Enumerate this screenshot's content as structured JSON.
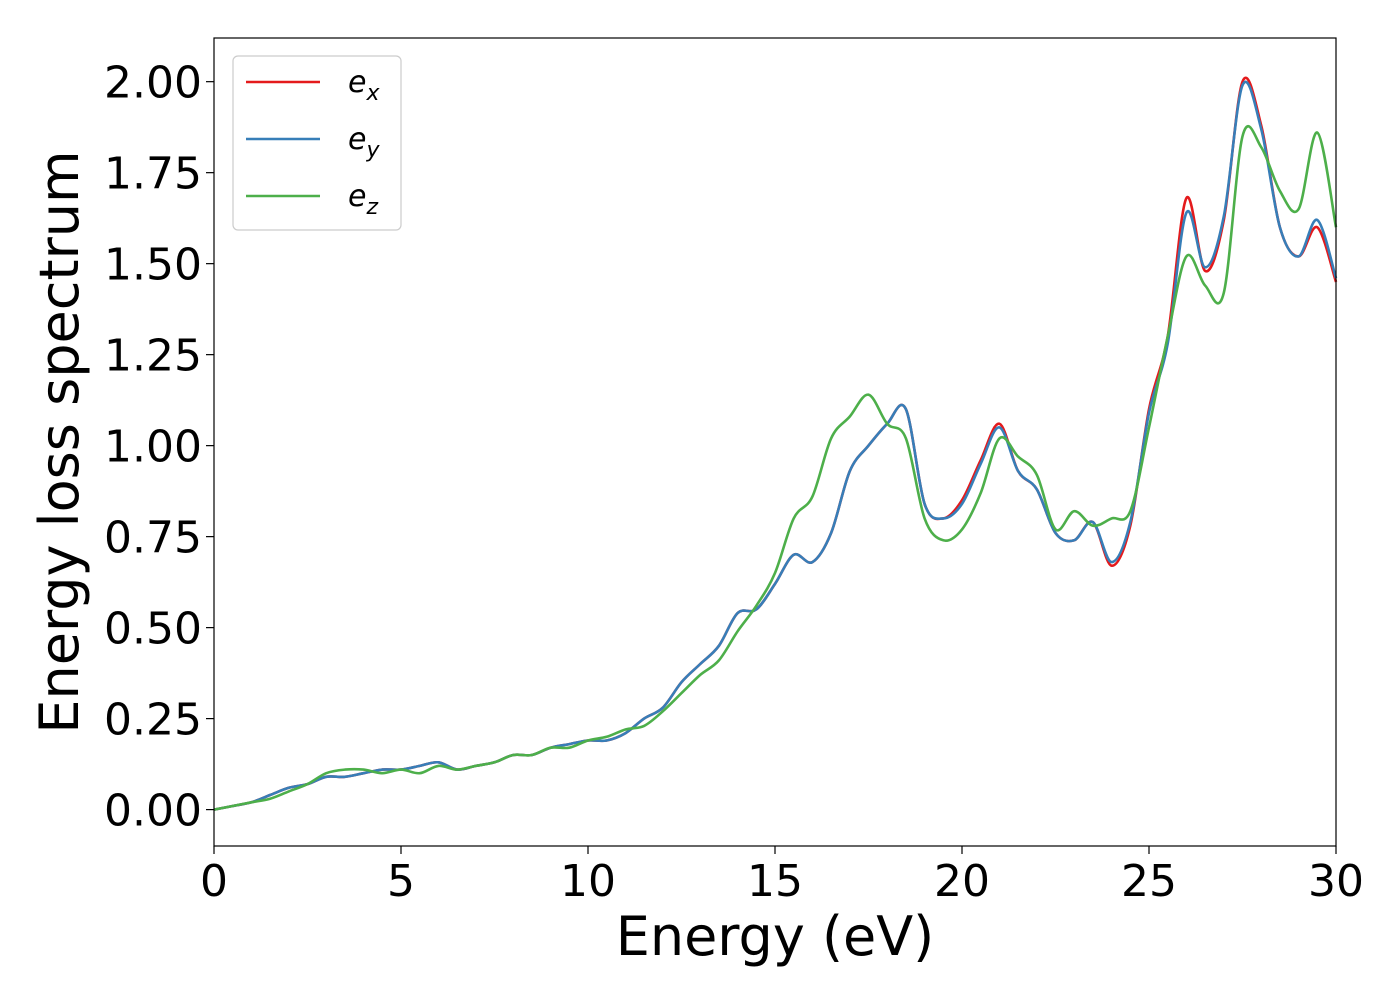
{
  "chart_data": {
    "type": "line",
    "title": "",
    "xlabel": "Energy (eV)",
    "ylabel": "Energy loss spectrum",
    "xlim": [
      0,
      30
    ],
    "ylim": [
      -0.1,
      2.12
    ],
    "grid": false,
    "legend_position": "top-left",
    "x_ticks": [
      "0",
      "5",
      "10",
      "15",
      "20",
      "25",
      "30"
    ],
    "y_ticks": [
      "0.00",
      "0.25",
      "0.50",
      "0.75",
      "1.00",
      "1.25",
      "1.50",
      "1.75",
      "2.00"
    ],
    "x": [
      0,
      0.5,
      1,
      1.5,
      2,
      2.5,
      3,
      3.5,
      4,
      4.5,
      5,
      5.5,
      6,
      6.5,
      7,
      7.5,
      8,
      8.5,
      9,
      9.5,
      10,
      10.5,
      11,
      11.5,
      12,
      12.5,
      13,
      13.5,
      14,
      14.5,
      15,
      15.5,
      16,
      16.5,
      17,
      17.5,
      18,
      18.5,
      19,
      19.5,
      20,
      20.5,
      21,
      21.5,
      22,
      22.5,
      23,
      23.5,
      24,
      24.5,
      25,
      25.5,
      26,
      26.5,
      27,
      27.5,
      28,
      28.5,
      29,
      29.5,
      30
    ],
    "series": [
      {
        "name": "e_x",
        "label_base": "e",
        "label_sub": "x",
        "color": "#e41a1c",
        "values": [
          0,
          0.01,
          0.02,
          0.04,
          0.06,
          0.07,
          0.09,
          0.09,
          0.1,
          0.11,
          0.11,
          0.12,
          0.13,
          0.11,
          0.12,
          0.13,
          0.15,
          0.15,
          0.17,
          0.18,
          0.19,
          0.19,
          0.21,
          0.25,
          0.28,
          0.35,
          0.4,
          0.45,
          0.54,
          0.55,
          0.62,
          0.7,
          0.68,
          0.76,
          0.93,
          1.0,
          1.06,
          1.1,
          0.84,
          0.8,
          0.85,
          0.96,
          1.06,
          0.93,
          0.88,
          0.76,
          0.74,
          0.79,
          0.67,
          0.78,
          1.1,
          1.3,
          1.68,
          1.48,
          1.62,
          2.0,
          1.88,
          1.6,
          1.52,
          1.6,
          1.45
        ]
      },
      {
        "name": "e_y",
        "label_base": "e",
        "label_sub": "y",
        "color": "#377eb8",
        "values": [
          0,
          0.01,
          0.02,
          0.04,
          0.06,
          0.07,
          0.09,
          0.09,
          0.1,
          0.11,
          0.11,
          0.12,
          0.13,
          0.11,
          0.12,
          0.13,
          0.15,
          0.15,
          0.17,
          0.18,
          0.19,
          0.19,
          0.21,
          0.25,
          0.28,
          0.35,
          0.4,
          0.45,
          0.54,
          0.55,
          0.62,
          0.7,
          0.68,
          0.76,
          0.93,
          1.0,
          1.06,
          1.1,
          0.84,
          0.8,
          0.84,
          0.95,
          1.05,
          0.93,
          0.88,
          0.76,
          0.74,
          0.79,
          0.68,
          0.79,
          1.09,
          1.28,
          1.64,
          1.49,
          1.63,
          1.99,
          1.87,
          1.6,
          1.52,
          1.62,
          1.46
        ]
      },
      {
        "name": "e_z",
        "label_base": "e",
        "label_sub": "z",
        "color": "#4daf4a",
        "values": [
          0,
          0.01,
          0.02,
          0.03,
          0.05,
          0.07,
          0.1,
          0.11,
          0.11,
          0.1,
          0.11,
          0.1,
          0.12,
          0.11,
          0.12,
          0.13,
          0.15,
          0.15,
          0.17,
          0.17,
          0.19,
          0.2,
          0.22,
          0.23,
          0.27,
          0.32,
          0.37,
          0.41,
          0.49,
          0.56,
          0.65,
          0.8,
          0.86,
          1.02,
          1.08,
          1.14,
          1.06,
          1.02,
          0.8,
          0.74,
          0.77,
          0.87,
          1.02,
          0.97,
          0.92,
          0.77,
          0.82,
          0.78,
          0.8,
          0.82,
          1.05,
          1.3,
          1.52,
          1.44,
          1.42,
          1.85,
          1.82,
          1.7,
          1.65,
          1.86,
          1.6
        ]
      }
    ]
  }
}
